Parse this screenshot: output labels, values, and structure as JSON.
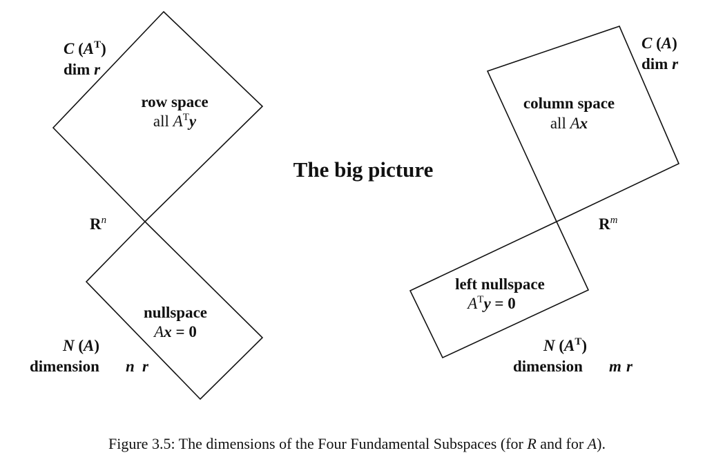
{
  "title": "The big picture",
  "caption": {
    "prefix": "Figure 3.5: The dimensions of the Four Fundamental Subspaces (for ",
    "var1": "R",
    "middle": " and for ",
    "var2": "A",
    "suffix": ")."
  },
  "left": {
    "space_label": {
      "letter": "R",
      "sup": "n"
    },
    "row_space": {
      "symbol": {
        "main": "C",
        "paren_open": " (",
        "var": "A",
        "sup": "T",
        "paren_close": ")"
      },
      "dim": {
        "word": "dim ",
        "var": "r"
      },
      "name": "row space",
      "desc": {
        "word": "all ",
        "var": "A",
        "sup": "T",
        "vec": "y"
      }
    },
    "nullspace": {
      "name": "nullspace",
      "equation": {
        "var": "A",
        "vec": "x",
        "rest": " = 0"
      },
      "symbol": {
        "main": "N",
        "paren_open": " (",
        "var": "A",
        "paren_close": ")"
      },
      "dim": {
        "word": "dimension ",
        "var1": "n",
        "var2": "r"
      }
    }
  },
  "right": {
    "space_label": {
      "letter": "R",
      "sup": "m"
    },
    "column_space": {
      "symbol": {
        "main": "C",
        "paren_open": " (",
        "var": "A",
        "paren_close": ")"
      },
      "dim": {
        "word": "dim ",
        "var": "r"
      },
      "name": "column space",
      "desc": {
        "word": "all ",
        "var": "A",
        "vec": "x"
      }
    },
    "left_nullspace": {
      "name": "left nullspace",
      "equation": {
        "var": "A",
        "sup": "T",
        "vec": "y",
        "rest": " = 0"
      },
      "symbol": {
        "main": "N",
        "paren_open": " (",
        "var": "A",
        "sup": "T",
        "paren_close": ")"
      },
      "dim": {
        "word": "dimension ",
        "var1": "m",
        "var2": "r"
      }
    }
  }
}
